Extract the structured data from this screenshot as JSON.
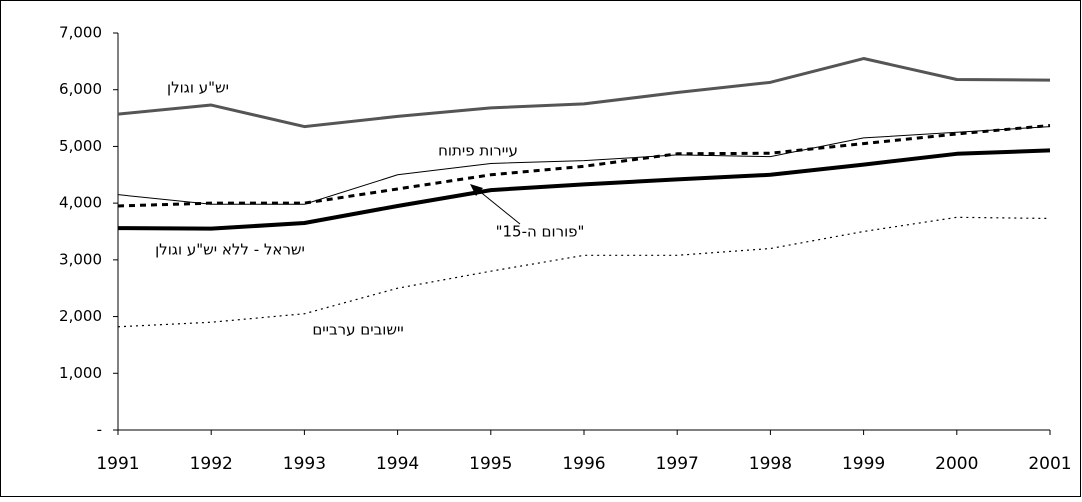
{
  "chart_data": {
    "type": "line",
    "x": [
      1991,
      1992,
      1993,
      1994,
      1995,
      1996,
      1997,
      1998,
      1999,
      2000,
      2001
    ],
    "series": [
      {
        "name": "יש\"ע וגולן",
        "color": "#555555",
        "values": [
          5570,
          5730,
          5350,
          5530,
          5680,
          5750,
          5950,
          6130,
          6550,
          6180,
          6170
        ]
      },
      {
        "name": "עיירות פיתוח",
        "color": "#000000",
        "values": [
          4150,
          3980,
          3980,
          4500,
          4700,
          4750,
          4850,
          4820,
          5150,
          5250,
          5350
        ]
      },
      {
        "name": "\"פורום ה-15\"",
        "color": "#000000",
        "values": [
          3950,
          4000,
          4000,
          4250,
          4500,
          4650,
          4870,
          4880,
          5050,
          5220,
          5370
        ]
      },
      {
        "name": "ישראל - ללא יש\"ע וגולן",
        "color": "#000000",
        "values": [
          3560,
          3550,
          3650,
          3950,
          4230,
          4330,
          4420,
          4500,
          4680,
          4870,
          4930
        ]
      },
      {
        "name": "יישובים ערביים",
        "color": "#000000",
        "values": [
          1820,
          1900,
          2050,
          2500,
          2800,
          3080,
          3080,
          3200,
          3500,
          3750,
          3730
        ]
      }
    ],
    "xlim": [
      1991,
      2001
    ],
    "xticks": [
      1991,
      1992,
      1993,
      1994,
      1995,
      1996,
      1997,
      1998,
      1999,
      2000,
      2001
    ],
    "ylim": [
      0,
      7000
    ],
    "yticks": [
      {
        "value": 0,
        "label": "-"
      },
      {
        "value": 1000,
        "label": "1,000"
      },
      {
        "value": 2000,
        "label": "2,000"
      },
      {
        "value": 3000,
        "label": "3,000"
      },
      {
        "value": 4000,
        "label": "4,000"
      },
      {
        "value": 5000,
        "label": "5,000"
      },
      {
        "value": 6000,
        "label": "6,000"
      },
      {
        "value": 7000,
        "label": "7,000"
      }
    ],
    "grid": false
  }
}
